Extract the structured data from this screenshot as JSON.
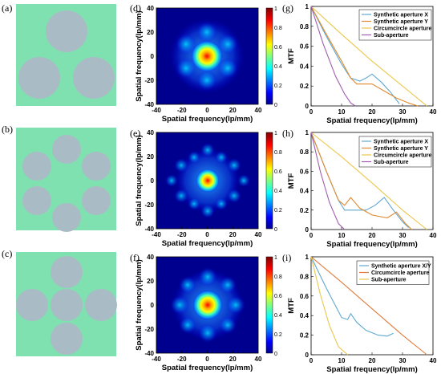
{
  "colors": {
    "pupil_bg": "#7fe0b0",
    "aperture": "#a9bcc5",
    "line_synthetic_x": "#5fa8d3",
    "line_synthetic_y": "#e08a2e",
    "line_circumcircle": "#e9c84a",
    "line_sub": "#a05cb0",
    "line_xy": "#5fa8d3",
    "line_circum_i": "#e07a3a",
    "line_sub_i": "#e9c84a"
  },
  "panels": {
    "a": "(a)",
    "b": "(b)",
    "c": "(c)",
    "d": "(d)",
    "e": "(e)",
    "f": "(f)",
    "g": "(g)",
    "h": "(h)",
    "i": "(i)"
  },
  "psf_axes": {
    "xlabel": "Spatial frequency(lp/mm)",
    "ylabel": "Spatial frequency(lp/mm)",
    "x_ticks": [
      "-40",
      "-20",
      "0",
      "20",
      "40"
    ],
    "y_ticks": [
      "40",
      "20",
      "0",
      "-20",
      "-40"
    ],
    "colorbar_ticks": [
      "1",
      "0.8",
      "0.6",
      "0.4",
      "0.2",
      "0"
    ]
  },
  "mtf_axes": {
    "xlabel": "Spatial frequency(lp/mm)",
    "ylabel": "MTF",
    "x_ticks": [
      "0",
      "10",
      "20",
      "30",
      "40"
    ],
    "y_ticks": [
      "1",
      "0.8",
      "0.6",
      "0.4",
      "0.2",
      "0"
    ]
  },
  "legend_g": [
    "Synthetic aperture X",
    "Synthetic aperture Y",
    "Circumcircle aperture",
    "Sub-aperture"
  ],
  "legend_h": [
    "Synthetic aperture X",
    "Synthetic aperture Y",
    "Circumcircle aperture",
    "Sub-aperture"
  ],
  "legend_i": [
    "Synthetic aperture X/Y",
    "Circumcircle aperture",
    "Sub-aperture"
  ],
  "chart_data": [
    {
      "type": "line",
      "panel": "g",
      "xlabel": "Spatial frequency(lp/mm)",
      "ylabel": "MTF",
      "xlim": [
        0,
        40
      ],
      "ylim": [
        0,
        1
      ],
      "series": [
        {
          "name": "Synthetic aperture X",
          "x": [
            0,
            5,
            10,
            13,
            16,
            18,
            20,
            23,
            26,
            29
          ],
          "y": [
            1,
            0.7,
            0.42,
            0.28,
            0.25,
            0.28,
            0.32,
            0.24,
            0.14,
            0.02
          ]
        },
        {
          "name": "Synthetic aperture Y",
          "x": [
            0,
            5,
            10,
            13,
            15,
            17,
            20,
            24,
            28,
            32,
            35
          ],
          "y": [
            1,
            0.72,
            0.45,
            0.28,
            0.22,
            0.22,
            0.22,
            0.15,
            0.08,
            0.03,
            0
          ]
        },
        {
          "name": "Circumcircle aperture",
          "x": [
            0,
            10,
            20,
            30,
            38
          ],
          "y": [
            1,
            0.72,
            0.45,
            0.2,
            0
          ]
        },
        {
          "name": "Sub-aperture",
          "x": [
            0,
            4,
            8,
            11,
            13,
            14.5
          ],
          "y": [
            1,
            0.62,
            0.3,
            0.12,
            0.03,
            0
          ]
        }
      ]
    },
    {
      "type": "line",
      "panel": "h",
      "xlabel": "Spatial frequency(lp/mm)",
      "ylabel": "MTF",
      "xlim": [
        0,
        40
      ],
      "ylim": [
        0,
        1
      ],
      "series": [
        {
          "name": "Synthetic aperture X",
          "x": [
            0,
            5,
            9,
            11,
            14,
            18,
            21,
            24,
            27,
            30,
            32
          ],
          "y": [
            1,
            0.6,
            0.3,
            0.2,
            0.2,
            0.2,
            0.25,
            0.33,
            0.2,
            0.08,
            0.02
          ]
        },
        {
          "name": "Synthetic aperture Y",
          "x": [
            0,
            5,
            9,
            11,
            13,
            16,
            20,
            25,
            28,
            31,
            33
          ],
          "y": [
            1,
            0.6,
            0.3,
            0.25,
            0.33,
            0.22,
            0.15,
            0.12,
            0.18,
            0.06,
            0
          ]
        },
        {
          "name": "Circumcircle aperture",
          "x": [
            0,
            10,
            20,
            30,
            38
          ],
          "y": [
            1,
            0.75,
            0.48,
            0.2,
            0
          ]
        },
        {
          "name": "Sub-aperture",
          "x": [
            0,
            3,
            6,
            9,
            11
          ],
          "y": [
            1,
            0.6,
            0.28,
            0.06,
            0
          ]
        }
      ]
    },
    {
      "type": "line",
      "panel": "i",
      "xlabel": "Spatial frequency(lp/mm)",
      "ylabel": "MTF",
      "xlim": [
        0,
        40
      ],
      "ylim": [
        0,
        1
      ],
      "series": [
        {
          "name": "Synthetic aperture X/Y",
          "x": [
            0,
            5,
            10,
            12,
            13,
            15,
            18,
            22,
            25,
            27
          ],
          "y": [
            1,
            0.68,
            0.38,
            0.36,
            0.42,
            0.33,
            0.25,
            0.2,
            0.19,
            0.22
          ]
        },
        {
          "name": "Circumcircle aperture",
          "x": [
            0,
            10,
            20,
            30,
            38
          ],
          "y": [
            1,
            0.74,
            0.47,
            0.2,
            0
          ]
        },
        {
          "name": "Sub-aperture",
          "x": [
            0,
            3,
            6,
            9,
            12
          ],
          "y": [
            1,
            0.62,
            0.3,
            0.08,
            0
          ]
        }
      ]
    }
  ]
}
